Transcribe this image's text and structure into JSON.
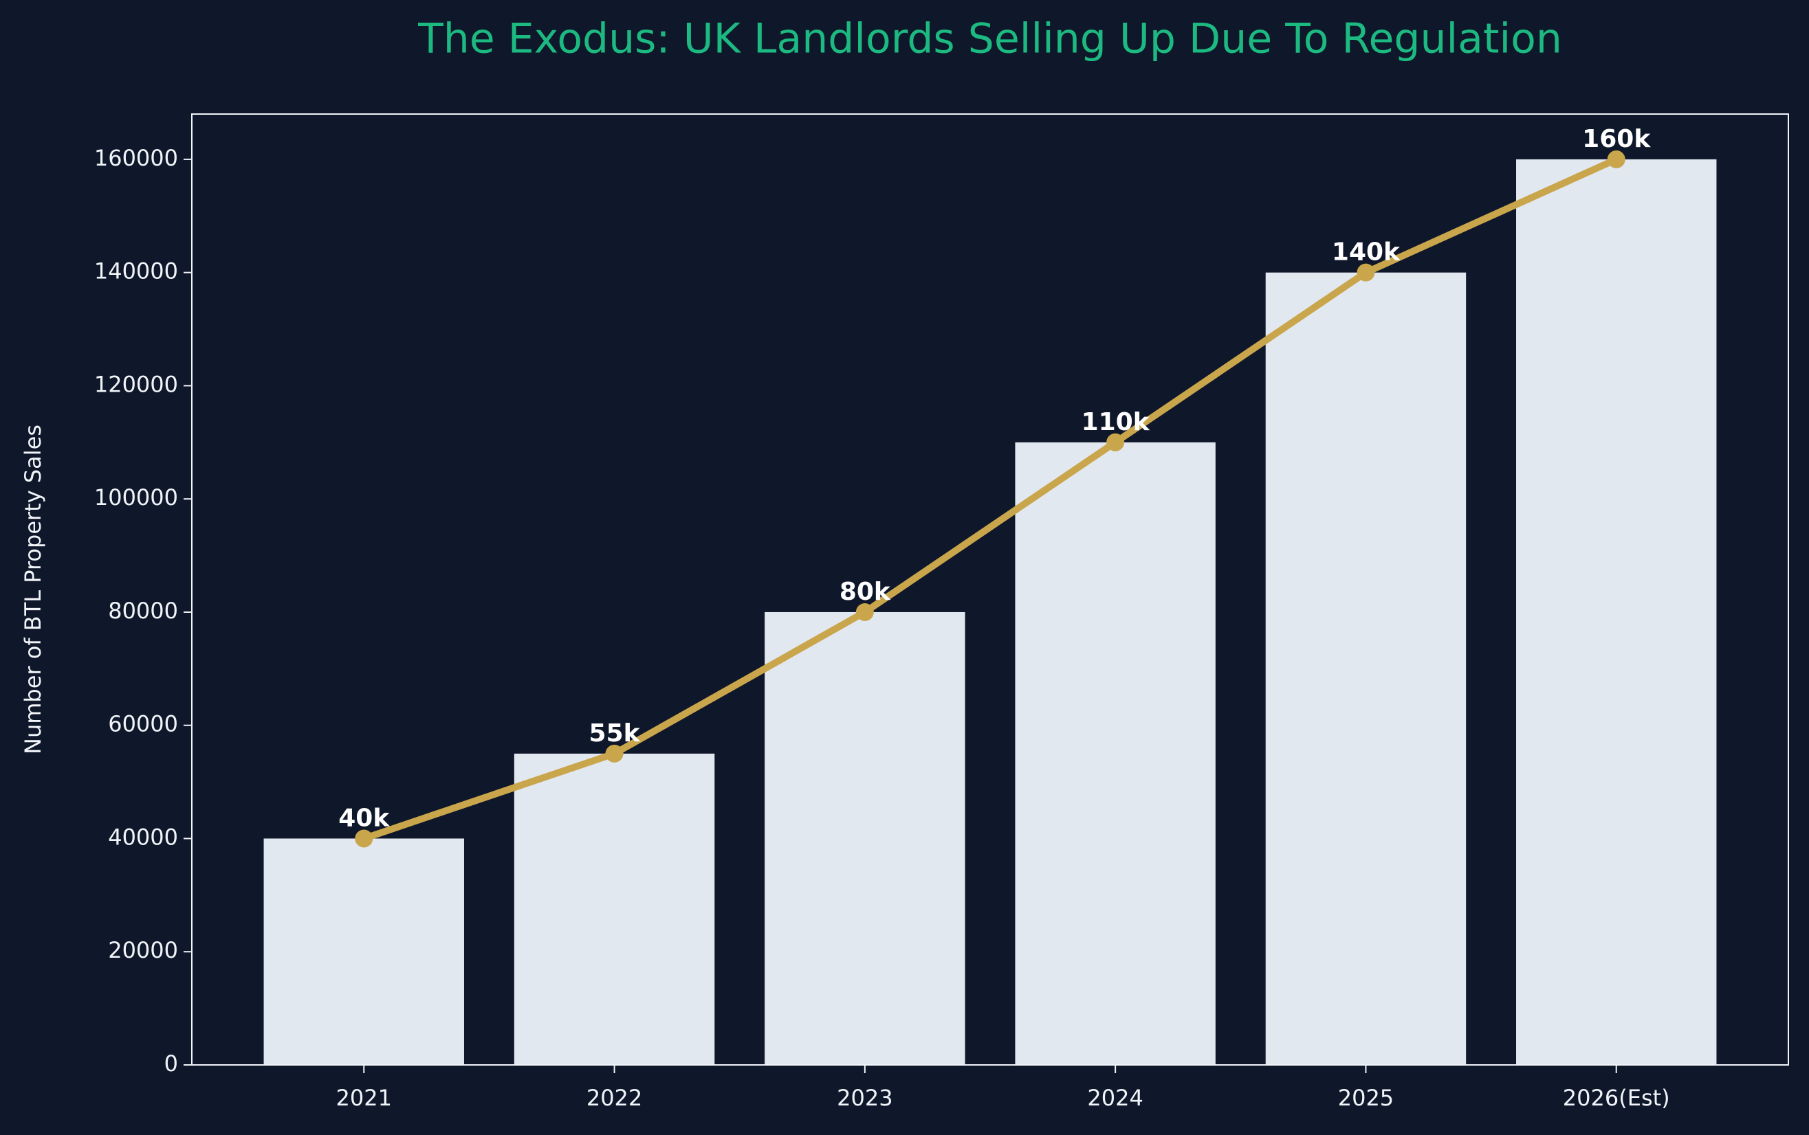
{
  "chart_data": {
    "type": "bar",
    "title": "The Exodus: UK Landlords Selling Up Due To Regulation",
    "y_label": "Number of BTL Property Sales",
    "categories": [
      "2021",
      "2022",
      "2023",
      "2024",
      "2025",
      "2026(Est)"
    ],
    "values": [
      40000,
      55000,
      80000,
      110000,
      140000,
      160000
    ],
    "value_labels": [
      "40k",
      "55k",
      "80k",
      "110k",
      "140k",
      "160k"
    ],
    "color": "#e2e8f0",
    "line_color": "#c9a54c",
    "title_color": "#1cb981",
    "ylim": [
      0,
      168000
    ],
    "yticks": [
      0,
      20000,
      40000,
      60000,
      80000,
      100000,
      120000,
      140000,
      160000
    ],
    "grid": false
  }
}
